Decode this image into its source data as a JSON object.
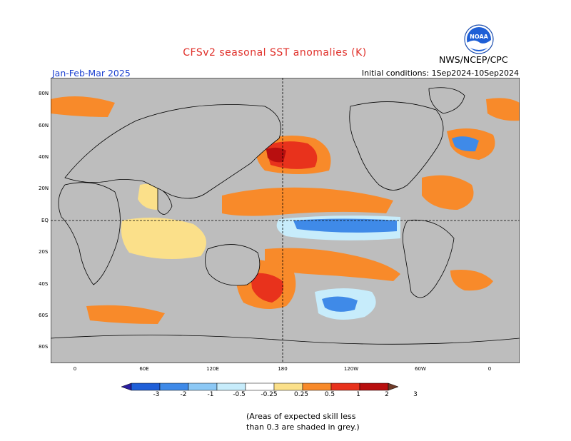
{
  "title": "CFSv2 seasonal SST anomalies (K)",
  "season": "Jan-Feb-Mar 2025",
  "initial_conditions": "Initial conditions:  1Sep2024-10Sep2024",
  "agency": "NWS/NCEP/CPC",
  "logo_text": "NOAA",
  "lat_labels": [
    "80N",
    "60N",
    "40N",
    "20N",
    "EQ",
    "20S",
    "40S",
    "60S",
    "80S"
  ],
  "lon_labels": [
    "0",
    "60E",
    "120E",
    "180",
    "120W",
    "60W",
    "0"
  ],
  "colorbar": {
    "ticks": [
      "-3",
      "-2",
      "-1",
      "-0.5",
      "-0.25",
      "0.25",
      "0.5",
      "1",
      "2",
      "3"
    ],
    "colors": [
      "#2a1fa0",
      "#1f5fd8",
      "#3f8ae8",
      "#8cc8f5",
      "#c7ecfb",
      "#ffffff",
      "#fbe08a",
      "#f88a2a",
      "#e8321c",
      "#b80f0f",
      "#6e3a28"
    ]
  },
  "note_line1": "(Areas of expected skill less",
  "note_line2": "than 0.3 are shaded in grey.)",
  "map_colors": {
    "skill_grey": "#bdbdbd",
    "land": "#bdbdbd",
    "warm_light": "#fbe08a",
    "warm_orange": "#f88a2a",
    "warm_red": "#e8321c",
    "cool_light": "#c7ecfb",
    "cool_blue": "#3f8ae8"
  }
}
